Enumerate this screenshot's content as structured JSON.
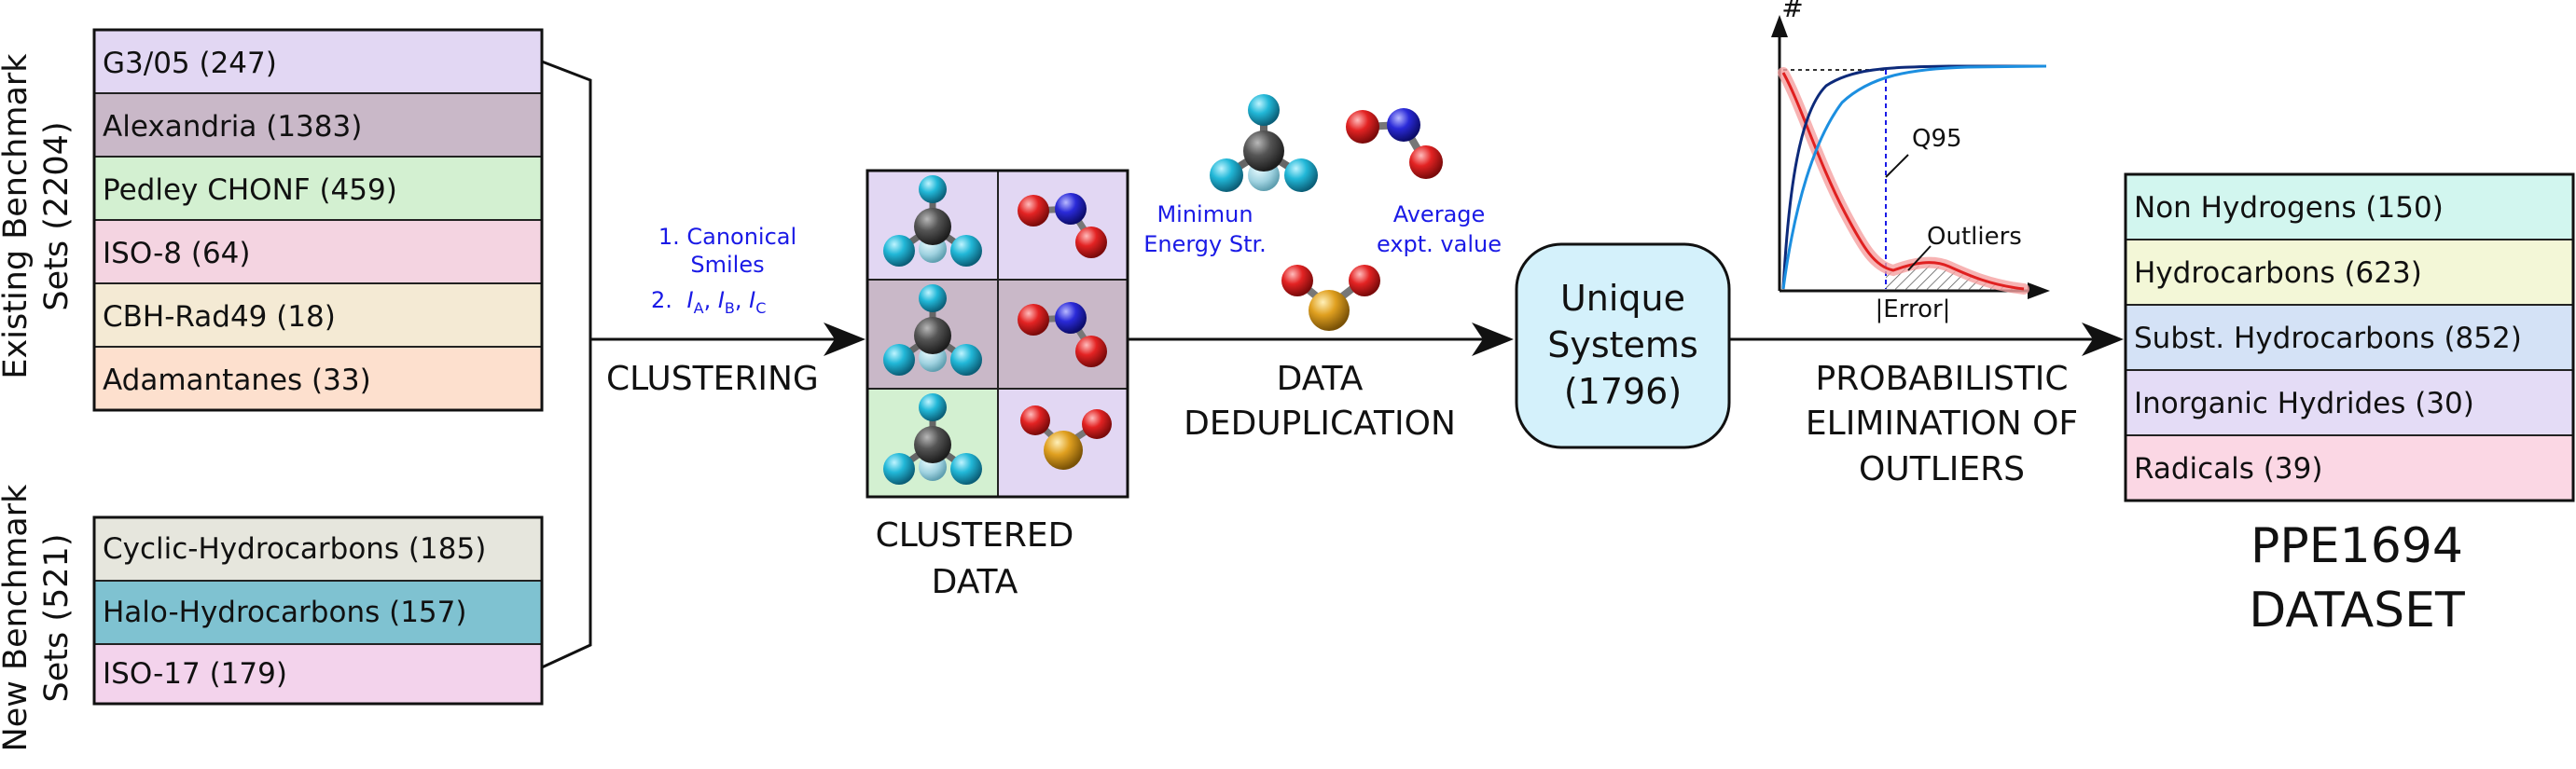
{
  "existing_sets": {
    "label_line1": "Existing Benchmark",
    "label_line2": "Sets (2204)",
    "items": [
      {
        "label": "G3/05 (247)",
        "color": "#e2d7f3"
      },
      {
        "label": "Alexandria (1383)",
        "color": "#c9b8c8"
      },
      {
        "label": "Pedley CHONF (459)",
        "color": "#d3f0d1"
      },
      {
        "label": "ISO-8 (64)",
        "color": "#f4d4e1"
      },
      {
        "label": "CBH-Rad49 (18)",
        "color": "#f4ead4"
      },
      {
        "label": "Adamantanes (33)",
        "color": "#fde0ce"
      }
    ]
  },
  "new_sets": {
    "label_line1": "New Benchmark",
    "label_line2": "Sets (521)",
    "items": [
      {
        "label": "Cyclic-Hydrocarbons (185)",
        "color": "#e6e6dd"
      },
      {
        "label": "Halo-Hydrocarbons (157)",
        "color": "#7fc2d1"
      },
      {
        "label": "ISO-17 (179)",
        "color": "#f3d3ec"
      }
    ]
  },
  "clustering": {
    "step1_line1": "1. Canonical",
    "step1_line2": "Smiles",
    "step2_prefix": "2.",
    "moment_a": "I",
    "moment_a_sub": "A",
    "moment_b": "I",
    "moment_b_sub": "B",
    "moment_c": "I",
    "moment_c_sub": "C",
    "label": "CLUSTERING"
  },
  "clustered_data": {
    "label_line1": "CLUSTERED",
    "label_line2": "DATA",
    "cell_colors": [
      "#e2d7f3",
      "#e2d7f3",
      "#c9b8c8",
      "#c9b8c8",
      "#d3f0d1",
      "#e2d7f3"
    ]
  },
  "deduplication": {
    "note_left_line1": "Minimun",
    "note_left_line2": "Energy Str.",
    "note_right_line1": "Average",
    "note_right_line2": "expt. value",
    "label_line1": "DATA",
    "label_line2": "DEDUPLICATION"
  },
  "unique_systems": {
    "line1": "Unique",
    "line2": "Systems",
    "line3": "(1796)",
    "color": "#d4f1fb"
  },
  "outlier_plot": {
    "y_label": "#",
    "x_label": "|Error|",
    "q95_label": "Q95",
    "outliers_label": "Outliers"
  },
  "elimination": {
    "label_line1": "PROBABILISTIC",
    "label_line2": "ELIMINATION OF",
    "label_line3": "OUTLIERS"
  },
  "dataset": {
    "items": [
      {
        "label": "Non Hydrogens (150)",
        "color": "#d2f6ef"
      },
      {
        "label": "Hydrocarbons (623)",
        "color": "#f3f7d7"
      },
      {
        "label": "Subst. Hydrocarbons (852)",
        "color": "#d4e2f6"
      },
      {
        "label": "Inorganic Hydrides (30)",
        "color": "#e4dcf6"
      },
      {
        "label": "Radicals (39)",
        "color": "#fbd7e4"
      }
    ],
    "title_line1": "PPE1694",
    "title_line2": "DATASET"
  }
}
